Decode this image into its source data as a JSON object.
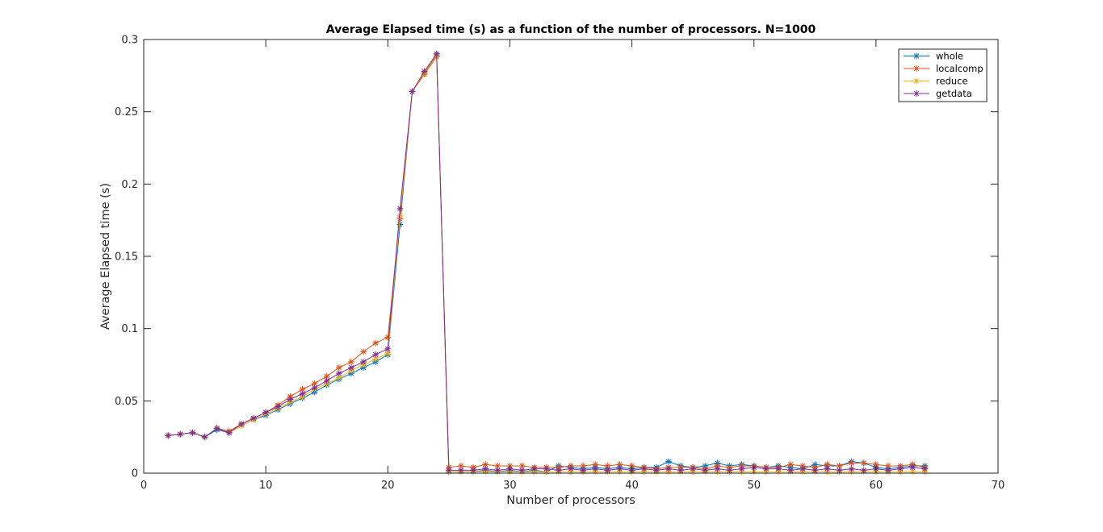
{
  "chart_data": {
    "type": "line",
    "title": "Average Elapsed time (s) as a function of the number of processors. N=1000",
    "xlabel": "Number of processors",
    "ylabel": "Average Elapsed time (s)",
    "xlim": [
      0,
      70
    ],
    "ylim": [
      0,
      0.3
    ],
    "xticks": [
      0,
      10,
      20,
      30,
      40,
      50,
      60,
      70
    ],
    "yticks": [
      0,
      0.05,
      0.1,
      0.15,
      0.2,
      0.25,
      0.3
    ],
    "xtick_labels": [
      "0",
      "10",
      "20",
      "30",
      "40",
      "50",
      "60",
      "70"
    ],
    "ytick_labels": [
      "0",
      "0.05",
      "0.1",
      "0.15",
      "0.2",
      "0.25",
      "0.3"
    ],
    "grid": false,
    "box": true,
    "marker": "asterisk",
    "legend_position": "top-right",
    "x": [
      2,
      3,
      4,
      5,
      6,
      7,
      8,
      9,
      10,
      11,
      12,
      13,
      14,
      15,
      16,
      17,
      18,
      19,
      20,
      21,
      22,
      23,
      24,
      25,
      26,
      27,
      28,
      29,
      30,
      31,
      32,
      33,
      34,
      35,
      36,
      37,
      38,
      39,
      40,
      41,
      42,
      43,
      44,
      45,
      46,
      47,
      48,
      49,
      50,
      51,
      52,
      53,
      54,
      55,
      56,
      57,
      58,
      59,
      60,
      61,
      62,
      63,
      64
    ],
    "series": [
      {
        "name": "whole",
        "color": "#0072BD",
        "values": [
          0.026,
          0.027,
          0.028,
          0.025,
          0.03,
          0.028,
          0.033,
          0.037,
          0.04,
          0.044,
          0.048,
          0.052,
          0.056,
          0.061,
          0.065,
          0.069,
          0.073,
          0.077,
          0.082,
          0.172,
          0.264,
          0.277,
          0.29,
          0.001,
          0.001,
          0.001,
          0.002,
          0.001,
          0.002,
          0.001,
          0.002,
          0.001,
          0.005,
          0.004,
          0.003,
          0.004,
          0.003,
          0.004,
          0.003,
          0.004,
          0.004,
          0.008,
          0.005,
          0.004,
          0.005,
          0.007,
          0.005,
          0.006,
          0.005,
          0.004,
          0.005,
          0.004,
          0.003,
          0.006,
          0.005,
          0.005,
          0.008,
          0.007,
          0.004,
          0.003,
          0.004,
          0.005,
          0.005
        ]
      },
      {
        "name": "localcomp",
        "color": "#D95319",
        "values": [
          0.026,
          0.027,
          0.028,
          0.025,
          0.031,
          0.029,
          0.034,
          0.038,
          0.042,
          0.047,
          0.053,
          0.058,
          0.062,
          0.067,
          0.073,
          0.077,
          0.084,
          0.09,
          0.094,
          0.176,
          0.264,
          0.276,
          0.288,
          0.004,
          0.005,
          0.004,
          0.006,
          0.005,
          0.005,
          0.005,
          0.004,
          0.004,
          0.004,
          0.005,
          0.005,
          0.006,
          0.005,
          0.006,
          0.005,
          0.004,
          0.003,
          0.004,
          0.004,
          0.004,
          0.003,
          0.005,
          0.004,
          0.005,
          0.005,
          0.004,
          0.004,
          0.006,
          0.005,
          0.004,
          0.006,
          0.005,
          0.007,
          0.007,
          0.006,
          0.005,
          0.005,
          0.006,
          0.004
        ]
      },
      {
        "name": "reduce",
        "color": "#EDB120",
        "values": [
          0.026,
          0.027,
          0.028,
          0.025,
          0.031,
          0.028,
          0.033,
          0.037,
          0.041,
          0.045,
          0.049,
          0.053,
          0.058,
          0.062,
          0.066,
          0.071,
          0.075,
          0.079,
          0.083,
          0.178,
          0.264,
          0.277,
          0.289,
          0.001,
          0.001,
          0.001,
          0.001,
          0.001,
          0.001,
          0.001,
          0.001,
          0.001,
          0.001,
          0.001,
          0.001,
          0.001,
          0.001,
          0.001,
          0.001,
          0.001,
          0.001,
          0.001,
          0.001,
          0.001,
          0.001,
          0.001,
          0.001,
          0.001,
          0.001,
          0.001,
          0.001,
          0.001,
          0.001,
          0.001,
          0.001,
          0.001,
          0.001,
          0.001,
          0.001,
          0.001,
          0.001,
          0.001,
          0.001
        ]
      },
      {
        "name": "getdata",
        "color": "#7E2F8E",
        "values": [
          0.026,
          0.027,
          0.028,
          0.025,
          0.031,
          0.028,
          0.034,
          0.038,
          0.042,
          0.046,
          0.051,
          0.055,
          0.059,
          0.064,
          0.069,
          0.073,
          0.077,
          0.082,
          0.086,
          0.183,
          0.264,
          0.278,
          0.29,
          0.002,
          0.002,
          0.002,
          0.003,
          0.002,
          0.003,
          0.002,
          0.003,
          0.003,
          0.002,
          0.003,
          0.002,
          0.003,
          0.002,
          0.003,
          0.002,
          0.003,
          0.002,
          0.003,
          0.002,
          0.003,
          0.002,
          0.003,
          0.002,
          0.003,
          0.004,
          0.003,
          0.003,
          0.002,
          0.003,
          0.002,
          0.003,
          0.002,
          0.003,
          0.002,
          0.003,
          0.002,
          0.003,
          0.004,
          0.003
        ]
      }
    ]
  }
}
